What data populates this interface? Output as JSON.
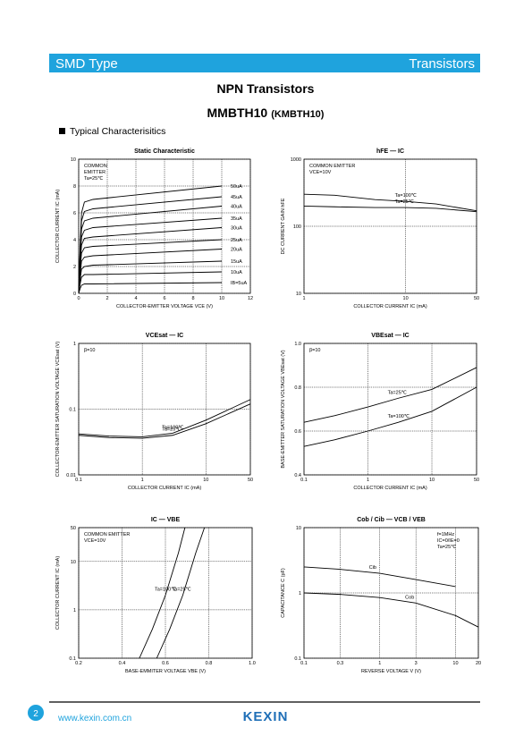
{
  "header": {
    "left": "SMD Type",
    "right": "Transistors"
  },
  "title": "NPN  Transistors",
  "part": "MMBTH10",
  "part_alt": "(KMBTH10)",
  "section": "Typical  Characterisitics",
  "footer": {
    "page": "2",
    "url": "www.kexin.com.cn",
    "logo": "KEXIN"
  },
  "chart_data": [
    {
      "type": "line",
      "title": "Static Characteristic",
      "x_label": "COLLECTOR-EMITTER VOLTAGE  VCE  (V)",
      "y_label": "COLLECTOR CURRENT   IC   (mA)",
      "xlim": [
        0,
        12
      ],
      "ylim": [
        0,
        10
      ],
      "xticks": [
        0,
        2,
        4,
        6,
        8,
        10,
        12
      ],
      "yticks": [
        0,
        2,
        4,
        6,
        8,
        10
      ],
      "xscale": "linear",
      "yscale": "linear",
      "color": "#000000",
      "annotations": [
        "COMMON",
        "EMITTER",
        "Ta=25℃"
      ],
      "x": [
        0,
        0.1,
        0.2,
        0.4,
        1,
        10
      ],
      "series": [
        {
          "name": "50uA",
          "values": [
            0,
            3.5,
            6.0,
            6.8,
            7.0,
            8.0
          ]
        },
        {
          "name": "45uA",
          "values": [
            0,
            3.2,
            5.4,
            6.1,
            6.3,
            7.2
          ]
        },
        {
          "name": "40uA",
          "values": [
            0,
            2.9,
            4.8,
            5.4,
            5.6,
            6.5
          ]
        },
        {
          "name": "35uA",
          "values": [
            0,
            2.6,
            4.2,
            4.7,
            4.9,
            5.6
          ]
        },
        {
          "name": "30uA",
          "values": [
            0,
            2.2,
            3.6,
            4.1,
            4.2,
            4.9
          ]
        },
        {
          "name": "25uA",
          "values": [
            0,
            1.8,
            3.0,
            3.4,
            3.5,
            4.0
          ]
        },
        {
          "name": "20uA",
          "values": [
            0,
            1.4,
            2.4,
            2.7,
            2.8,
            3.3
          ]
        },
        {
          "name": "15uA",
          "values": [
            0,
            1.0,
            1.8,
            2.0,
            2.1,
            2.4
          ]
        },
        {
          "name": "10uA",
          "values": [
            0,
            0.7,
            1.2,
            1.4,
            1.4,
            1.6
          ]
        },
        {
          "name": "IB=5uA",
          "values": [
            0,
            0.35,
            0.6,
            0.7,
            0.7,
            0.8
          ]
        }
      ]
    },
    {
      "type": "line",
      "title": "hFE  —  IC",
      "x_label": "COLLECTOR CURRENT   IC   (mA)",
      "y_label": "DC CURRENT GAIN   hFE",
      "xlim": [
        1,
        50
      ],
      "ylim": [
        10,
        1000
      ],
      "xticks": [
        1,
        10,
        50
      ],
      "yticks": [
        10,
        100,
        1000
      ],
      "xscale": "log",
      "yscale": "log",
      "color": "#000000",
      "annotations": [
        "COMMON EMITTER",
        "VCE=10V"
      ],
      "x": [
        1,
        2,
        5,
        10,
        20,
        50
      ],
      "series": [
        {
          "name": "Ta=100℃",
          "values": [
            300,
            290,
            250,
            235,
            215,
            170
          ]
        },
        {
          "name": "Ta=25℃",
          "values": [
            200,
            195,
            190,
            190,
            185,
            165
          ]
        }
      ]
    },
    {
      "type": "line",
      "title": "VCEsat  —  IC",
      "x_label": "COLLECTOR CURRENT   IC   (mA)",
      "y_label": "COLLECTOR-EMITTER SATURATION VOLTAGE  VCEsat  (V)",
      "xlim": [
        0.1,
        50
      ],
      "ylim": [
        0.01,
        1
      ],
      "xticks": [
        0.1,
        1,
        10,
        50
      ],
      "yticks": [
        0.01,
        0.1,
        1
      ],
      "xscale": "log",
      "yscale": "log",
      "color": "#000000",
      "annotations": [
        "β=10"
      ],
      "x": [
        0.1,
        0.3,
        1,
        3,
        10,
        50
      ],
      "series": [
        {
          "name": "Ta=100℃",
          "values": [
            0.042,
            0.039,
            0.038,
            0.043,
            0.068,
            0.14
          ]
        },
        {
          "name": "Ta=25℃",
          "values": [
            0.04,
            0.037,
            0.036,
            0.04,
            0.06,
            0.12
          ]
        }
      ]
    },
    {
      "type": "line",
      "title": "VBEsat  —  IC",
      "x_label": "COLLECTOR CURRENT   IC   (mA)",
      "y_label": "BASE-EMITTER SATURATION VOLTAGE  VBEsat  (V)",
      "xlim": [
        0.1,
        50
      ],
      "ylim": [
        0.4,
        1
      ],
      "xticks": [
        0.1,
        1,
        10,
        50
      ],
      "yticks": [
        0.4,
        0.6,
        0.8,
        {
          "value": 1,
          "label": "1.0"
        }
      ],
      "xscale": "log",
      "yscale": "linear",
      "color": "#000000",
      "annotations": [
        "β=10"
      ],
      "x": [
        0.1,
        0.3,
        1,
        3,
        10,
        50
      ],
      "series": [
        {
          "name": "Ta=25℃",
          "values": [
            0.64,
            0.67,
            0.71,
            0.75,
            0.79,
            0.89
          ]
        },
        {
          "name": "Ta=100℃",
          "values": [
            0.53,
            0.56,
            0.6,
            0.64,
            0.69,
            0.8
          ]
        }
      ]
    },
    {
      "type": "line",
      "title": "IC  —  VBE",
      "x_label": "BASE-EMMITER VOLTAGE  VBE  (V)",
      "y_label": "COLLECTOR CURRENT   IC   (mA)",
      "xlim": [
        0.2,
        1
      ],
      "ylim": [
        0.1,
        50
      ],
      "xticks": [
        0.2,
        0.4,
        0.6,
        0.8,
        {
          "value": 1,
          "label": "1.0"
        }
      ],
      "yticks": [
        0.1,
        1,
        10,
        50
      ],
      "xscale": "linear",
      "yscale": "log",
      "color": "#000000",
      "annotations": [
        "COMMON EMITTER",
        "VCE=10V"
      ],
      "series": [
        {
          "name": "Ta=100℃",
          "x": [
            0.48,
            0.54,
            0.6,
            0.66,
            0.69
          ],
          "values": [
            0.1,
            0.4,
            2,
            15,
            50
          ]
        },
        {
          "name": "Ta=25℃",
          "x": [
            0.56,
            0.62,
            0.68,
            0.74,
            0.78
          ],
          "values": [
            0.1,
            0.4,
            2,
            15,
            50
          ]
        }
      ]
    },
    {
      "type": "line",
      "title": "Cob / Cib  —  VCB / VEB",
      "x_label": "REVERSE VOLTAGE   V   (V)",
      "y_label": "CAPACITANCE   C   (pF)",
      "xlim": [
        0.1,
        20
      ],
      "ylim": [
        0.1,
        10
      ],
      "xticks": [
        0.1,
        0.3,
        1,
        3,
        10,
        20
      ],
      "yticks": [
        0.1,
        1,
        10
      ],
      "xscale": "log",
      "yscale": "log",
      "color": "#000000",
      "annotations": [
        "f=1MHz",
        "IC=0/IE=0",
        "Ta=25℃"
      ],
      "series": [
        {
          "name": "Cib",
          "x": [
            0.1,
            0.3,
            1,
            3,
            10
          ],
          "values": [
            2.5,
            2.3,
            2.0,
            1.6,
            1.25
          ]
        },
        {
          "name": "Cob",
          "x": [
            0.1,
            0.3,
            1,
            3,
            10,
            20
          ],
          "values": [
            1.0,
            0.95,
            0.85,
            0.7,
            0.45,
            0.3
          ]
        }
      ]
    }
  ]
}
